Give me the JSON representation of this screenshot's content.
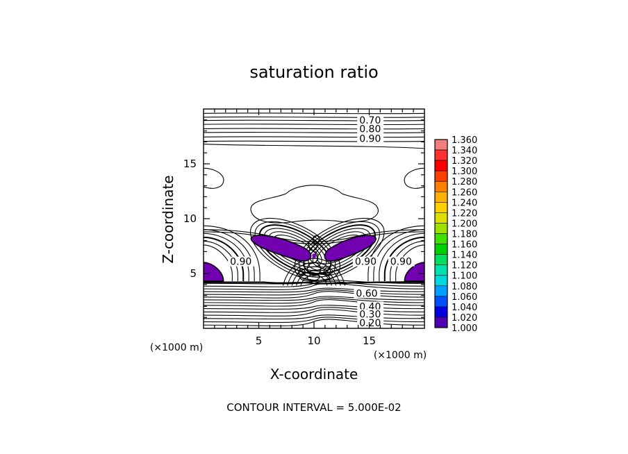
{
  "chart_data": {
    "type": "heatmap",
    "title": "saturation ratio",
    "xlabel": "X-coordinate",
    "ylabel": "Z-coordinate",
    "x_unit": "(×1000 m)",
    "y_unit": "(×1000 m)",
    "xlim": [
      0,
      20
    ],
    "ylim": [
      0,
      20
    ],
    "x_ticks": [
      5,
      10,
      15
    ],
    "y_ticks": [
      5,
      10,
      15
    ],
    "contour_interval_text": "CONTOUR INTERVAL = 5.000E-02",
    "contour_labels": [
      {
        "text": "0.70",
        "x": 14.1,
        "z": 19.0
      },
      {
        "text": "0.80",
        "x": 14.1,
        "z": 18.2
      },
      {
        "text": "0.90",
        "x": 14.1,
        "z": 17.3
      },
      {
        "text": "0.90",
        "x": 2.4,
        "z": 6.1
      },
      {
        "text": "0.90",
        "x": 13.7,
        "z": 6.1
      },
      {
        "text": "0.90",
        "x": 16.9,
        "z": 6.1
      },
      {
        "text": "0.60",
        "x": 13.8,
        "z": 3.2
      },
      {
        "text": "0.40",
        "x": 14.1,
        "z": 2.0
      },
      {
        "text": "0.30",
        "x": 14.1,
        "z": 1.3
      },
      {
        "text": "0.20",
        "x": 14.1,
        "z": 0.5
      }
    ],
    "colorbar": {
      "levels": [
        "1.360",
        "1.340",
        "1.320",
        "1.300",
        "1.280",
        "1.260",
        "1.240",
        "1.220",
        "1.200",
        "1.180",
        "1.160",
        "1.140",
        "1.120",
        "1.100",
        "1.080",
        "1.060",
        "1.040",
        "1.020",
        "1.000"
      ],
      "colors": [
        "#f08080",
        "#ff3030",
        "#ff0000",
        "#ff4000",
        "#ff8000",
        "#ffb000",
        "#ffd000",
        "#e0e000",
        "#a0e000",
        "#40e000",
        "#00d000",
        "#00e060",
        "#00e0b0",
        "#00d8e0",
        "#00a0ff",
        "#0050ff",
        "#0000e0",
        "#5000b0"
      ]
    },
    "filled_regions": [
      {
        "value": ">1.000",
        "color": "#7000b0",
        "cx": 8.4,
        "cz": 7.3
      },
      {
        "value": ">1.000",
        "color": "#7000b0",
        "cx": 12.2,
        "cz": 7.3
      },
      {
        "value": ">1.000",
        "color": "#7000b0",
        "cx": 0.5,
        "cz": 5.0
      },
      {
        "value": ">1.000",
        "color": "#7000b0",
        "cx": 19.5,
        "cz": 5.0
      }
    ]
  }
}
